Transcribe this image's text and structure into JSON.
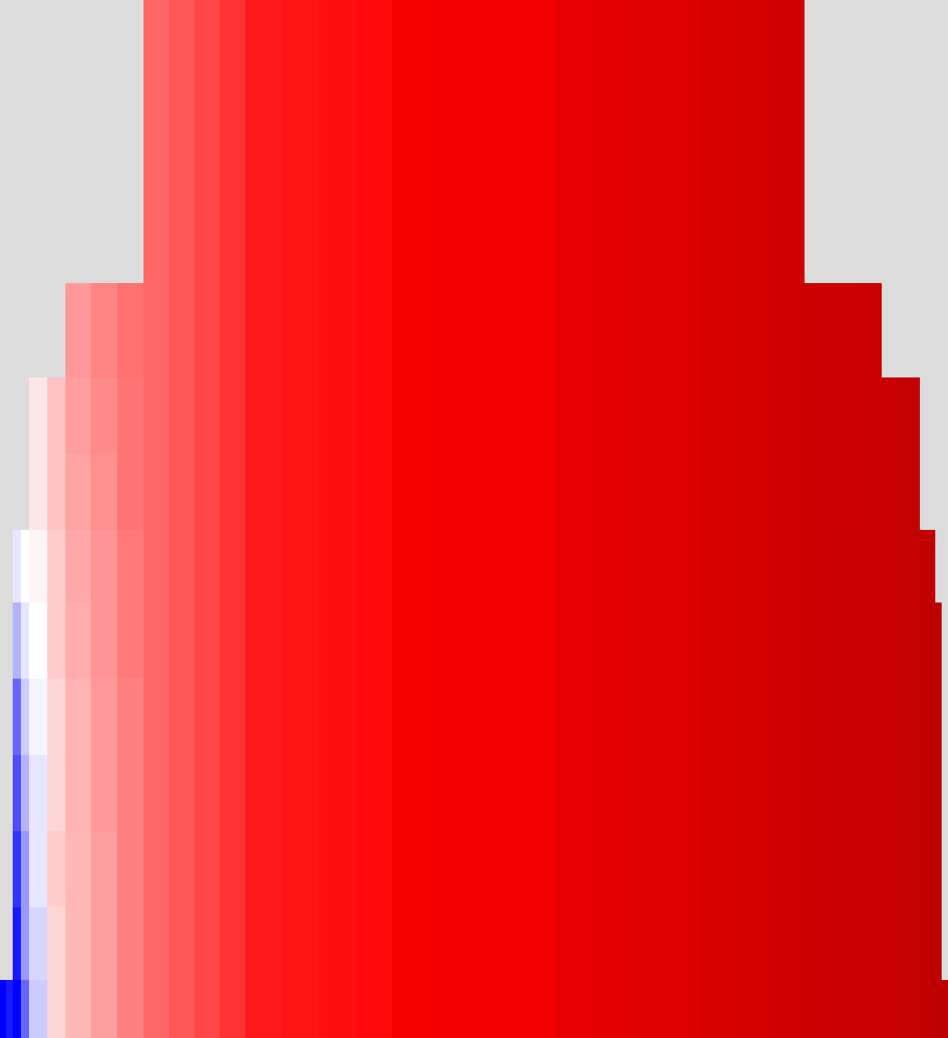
{
  "chart_data": {
    "type": "heatmap",
    "x": [
      0,
      7,
      14,
      23,
      32,
      52,
      72,
      100,
      129,
      158,
      186,
      214,
      242,
      270,
      311,
      351,
      392,
      432,
      477,
      522,
      567,
      612,
      652,
      692,
      733,
      773,
      811,
      848,
      886,
      914,
      943,
      971,
      992,
      1013,
      1022,
      1030,
      1037,
      1044
    ],
    "y": [
      0,
      104,
      208,
      312,
      416,
      500,
      584,
      664,
      748,
      832,
      916,
      1000,
      1080,
      1144
    ],
    "z": [
      [
        null,
        null,
        null,
        null,
        null,
        null,
        null,
        null,
        null,
        0.3,
        0.33,
        0.36,
        0.4,
        0.45,
        0.46,
        0.47,
        0.48,
        0.53,
        0.54,
        0.55,
        0.56,
        0.6,
        0.61,
        0.62,
        0.63,
        0.66,
        0.67,
        0.68,
        null,
        null,
        null,
        null,
        null,
        null,
        null,
        null,
        null
      ],
      [
        null,
        null,
        null,
        null,
        null,
        null,
        null,
        null,
        null,
        0.3,
        0.33,
        0.36,
        0.4,
        0.45,
        0.46,
        0.47,
        0.48,
        0.53,
        0.54,
        0.55,
        0.56,
        0.6,
        0.61,
        0.62,
        0.63,
        0.66,
        0.67,
        0.68,
        null,
        null,
        null,
        null,
        null,
        null,
        null,
        null,
        null
      ],
      [
        null,
        null,
        null,
        null,
        null,
        null,
        null,
        null,
        null,
        0.3,
        0.33,
        0.36,
        0.4,
        0.45,
        0.46,
        0.47,
        0.48,
        0.53,
        0.54,
        0.55,
        0.56,
        0.6,
        0.61,
        0.62,
        0.63,
        0.66,
        0.67,
        0.68,
        null,
        null,
        null,
        null,
        null,
        null,
        null,
        null,
        null
      ],
      [
        null,
        null,
        null,
        null,
        null,
        null,
        0.2,
        0.24,
        0.28,
        0.3,
        0.33,
        0.36,
        0.4,
        0.45,
        0.46,
        0.47,
        0.48,
        0.53,
        0.54,
        0.55,
        0.56,
        0.6,
        0.61,
        0.62,
        0.63,
        0.66,
        0.67,
        0.68,
        0.7,
        0.7,
        0.71,
        null,
        null,
        null,
        null,
        null,
        null
      ],
      [
        null,
        null,
        null,
        null,
        0.05,
        0.12,
        0.19,
        0.23,
        0.27,
        0.3,
        0.33,
        0.36,
        0.4,
        0.45,
        0.46,
        0.47,
        0.48,
        0.53,
        0.54,
        0.55,
        0.56,
        0.6,
        0.61,
        0.62,
        0.63,
        0.66,
        0.67,
        0.68,
        0.7,
        0.7,
        0.71,
        0.72,
        0.73,
        null,
        null,
        null,
        null
      ],
      [
        null,
        null,
        null,
        null,
        0.05,
        0.12,
        0.18,
        0.22,
        0.27,
        0.3,
        0.33,
        0.36,
        0.4,
        0.45,
        0.46,
        0.47,
        0.48,
        0.53,
        0.54,
        0.55,
        0.56,
        0.6,
        0.61,
        0.62,
        0.63,
        0.66,
        0.67,
        0.68,
        0.7,
        0.7,
        0.71,
        0.72,
        0.73,
        null,
        null,
        null,
        null
      ],
      [
        null,
        null,
        -0.05,
        0.0,
        0.02,
        0.1,
        0.17,
        0.21,
        0.26,
        0.3,
        0.33,
        0.36,
        0.4,
        0.45,
        0.46,
        0.47,
        0.48,
        0.53,
        0.54,
        0.55,
        0.56,
        0.6,
        0.61,
        0.62,
        0.63,
        0.66,
        0.67,
        0.68,
        0.7,
        0.71,
        0.71,
        0.72,
        0.73,
        0.74,
        0.75,
        null,
        null
      ],
      [
        null,
        null,
        -0.15,
        -0.05,
        0.0,
        0.1,
        0.16,
        0.21,
        0.26,
        0.3,
        0.33,
        0.36,
        0.4,
        0.45,
        0.46,
        0.47,
        0.48,
        0.53,
        0.54,
        0.55,
        0.56,
        0.6,
        0.61,
        0.62,
        0.63,
        0.66,
        0.67,
        0.68,
        0.7,
        0.71,
        0.71,
        0.72,
        0.73,
        0.74,
        0.75,
        0.76,
        null
      ],
      [
        null,
        null,
        -0.3,
        -0.1,
        -0.02,
        0.08,
        0.15,
        0.2,
        0.25,
        0.3,
        0.33,
        0.36,
        0.4,
        0.45,
        0.46,
        0.47,
        0.48,
        0.53,
        0.54,
        0.55,
        0.56,
        0.6,
        0.61,
        0.62,
        0.63,
        0.66,
        0.67,
        0.68,
        0.7,
        0.71,
        0.71,
        0.72,
        0.73,
        0.74,
        0.75,
        0.76,
        null
      ],
      [
        null,
        null,
        -0.35,
        -0.15,
        -0.05,
        0.08,
        0.15,
        0.2,
        0.25,
        0.3,
        0.33,
        0.36,
        0.4,
        0.45,
        0.46,
        0.47,
        0.48,
        0.53,
        0.54,
        0.55,
        0.56,
        0.6,
        0.61,
        0.62,
        0.63,
        0.66,
        0.67,
        0.68,
        0.7,
        0.71,
        0.71,
        0.72,
        0.73,
        0.74,
        0.75,
        0.76,
        null
      ],
      [
        null,
        null,
        -0.4,
        -0.2,
        -0.05,
        0.1,
        0.14,
        0.19,
        0.25,
        0.3,
        0.33,
        0.36,
        0.4,
        0.45,
        0.46,
        0.47,
        0.48,
        0.53,
        0.54,
        0.55,
        0.56,
        0.6,
        0.61,
        0.62,
        0.63,
        0.66,
        0.67,
        0.68,
        0.7,
        0.71,
        0.71,
        0.72,
        0.73,
        0.74,
        0.75,
        0.76,
        null
      ],
      [
        null,
        null,
        -0.45,
        -0.2,
        -0.08,
        0.08,
        0.14,
        0.19,
        0.25,
        0.3,
        0.33,
        0.36,
        0.4,
        0.45,
        0.46,
        0.47,
        0.48,
        0.53,
        0.54,
        0.55,
        0.56,
        0.6,
        0.61,
        0.62,
        0.63,
        0.66,
        0.67,
        0.68,
        0.7,
        0.71,
        0.71,
        0.72,
        0.73,
        0.74,
        0.75,
        0.76,
        null
      ],
      [
        -0.5,
        -0.45,
        -0.5,
        -0.3,
        -0.1,
        0.08,
        0.14,
        0.19,
        0.25,
        0.3,
        0.33,
        0.36,
        0.4,
        0.45,
        0.46,
        0.47,
        0.48,
        0.53,
        0.54,
        0.55,
        0.56,
        0.6,
        0.61,
        0.62,
        0.63,
        0.66,
        0.67,
        0.68,
        0.7,
        0.71,
        0.71,
        0.72,
        0.73,
        0.74,
        0.75,
        0.76,
        0.76
      ]
    ],
    "zlim": [
      -1,
      1
    ],
    "color": "seismic",
    "xlim": [
      0,
      1044
    ],
    "ylim": [
      1144,
      0
    ],
    "grid": false,
    "tick_labels": false
  }
}
